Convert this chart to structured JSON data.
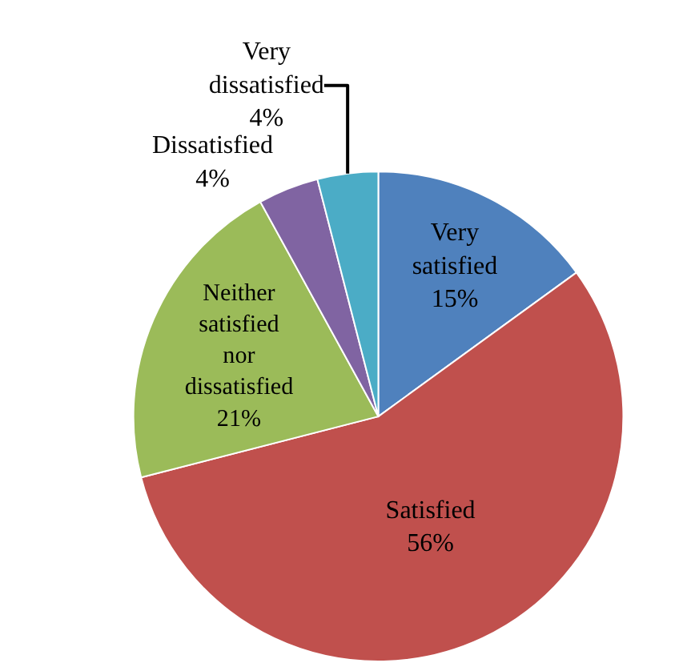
{
  "chart_data": {
    "type": "pie",
    "categories": [
      "Very satisfied",
      "Satisfied",
      "Neither satisfied nor dissatisfied",
      "Dissatisfied",
      "Very dissatisfied"
    ],
    "values": [
      15,
      56,
      21,
      4,
      4
    ],
    "value_labels": [
      "15%",
      "56%",
      "21%",
      "4%",
      "4%"
    ],
    "colors": [
      "#4f81bd",
      "#c0504d",
      "#9bbb59",
      "#8064a2",
      "#4bacc6"
    ],
    "legend": false
  }
}
